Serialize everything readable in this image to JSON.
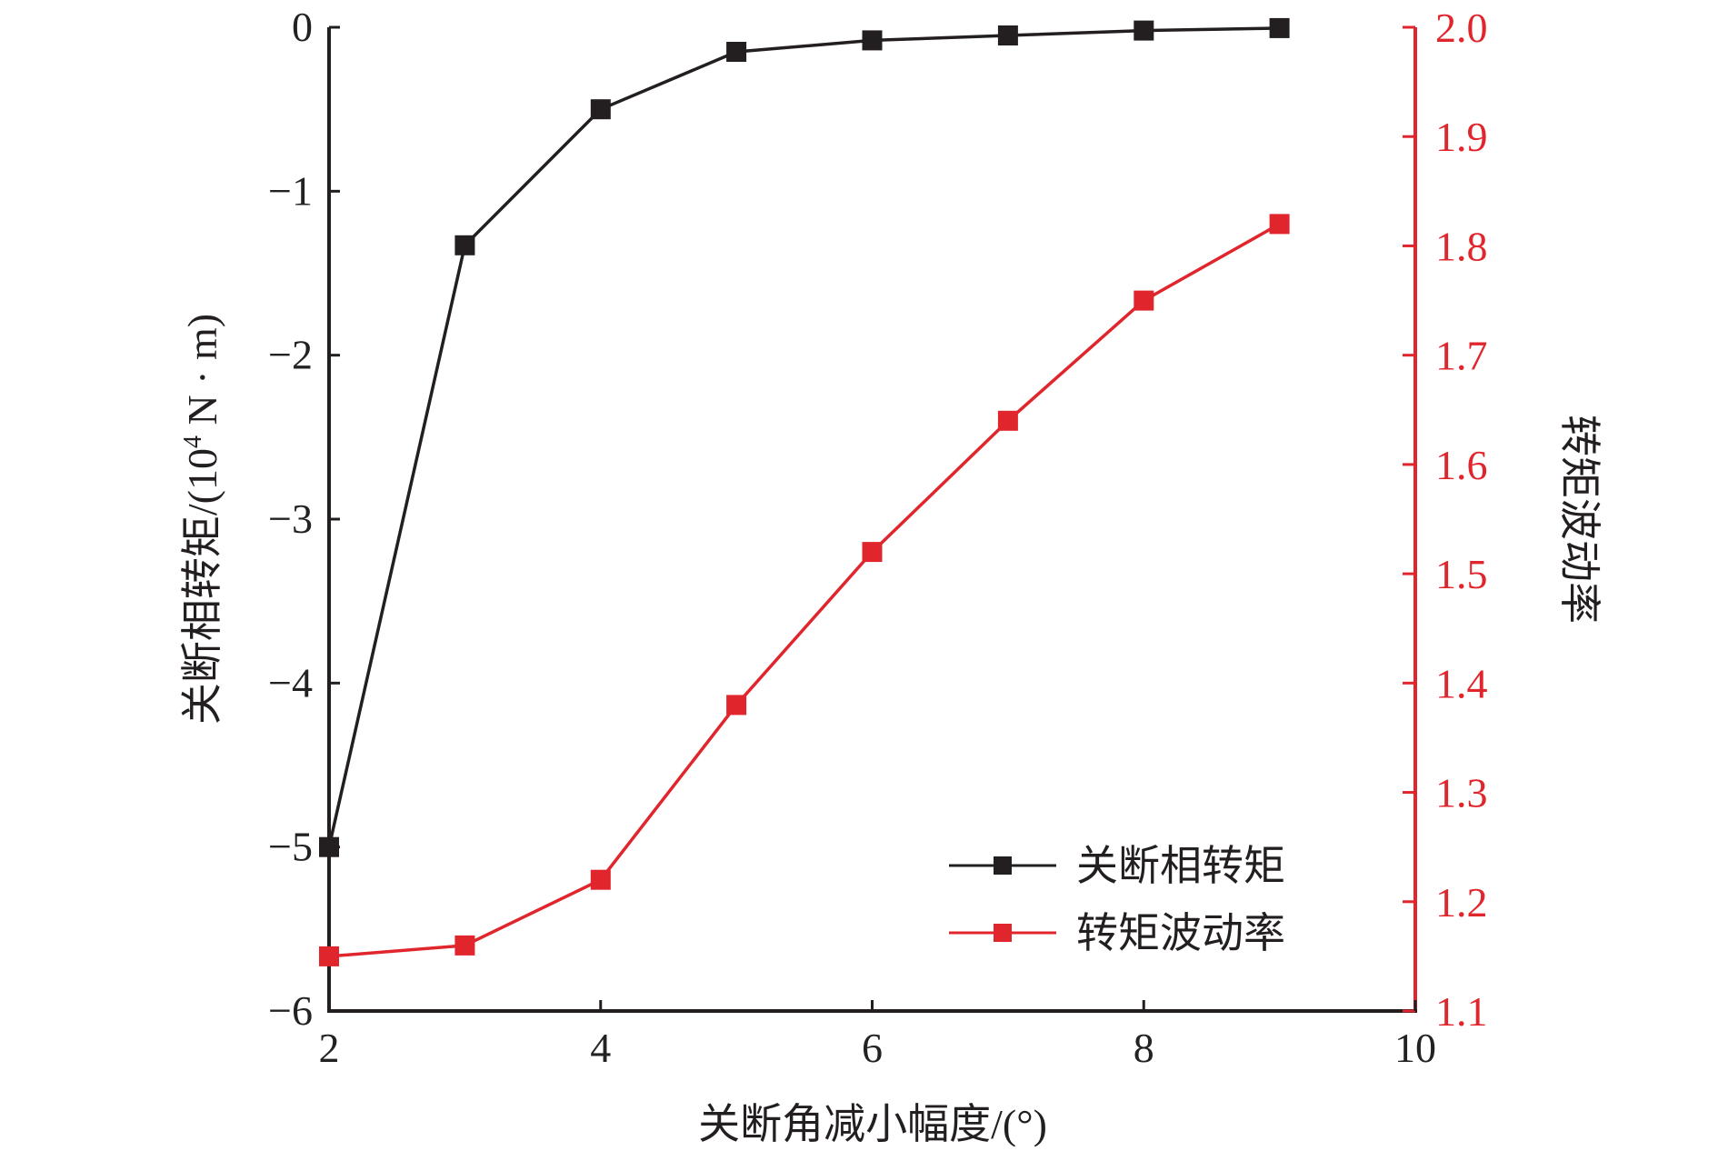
{
  "chart_data": {
    "type": "line",
    "xlabel": "关断角减小幅度/(°)",
    "ylabel_left": {
      "prefix": "关断相转矩/(10",
      "sup": "4",
      "suffix": " N · m)"
    },
    "ylabel_right": "转矩波动率",
    "x": [
      2,
      3,
      4,
      5,
      6,
      7,
      8,
      9
    ],
    "xlim": [
      2,
      10
    ],
    "xticks": [
      2,
      4,
      6,
      8,
      10
    ],
    "xtick_labels": [
      "2",
      "4",
      "6",
      "8",
      "10"
    ],
    "ylim_left": [
      -6,
      0
    ],
    "yticks_left": [
      0,
      -1,
      -2,
      -3,
      -4,
      -5,
      -6
    ],
    "ytick_labels_left": [
      "0",
      "−1",
      "−2",
      "−3",
      "−4",
      "−5",
      "−6"
    ],
    "ylim_right": [
      1.1,
      2.0
    ],
    "yticks_right": [
      2.0,
      1.9,
      1.8,
      1.7,
      1.6,
      1.5,
      1.4,
      1.3,
      1.2,
      1.1
    ],
    "ytick_labels_right": [
      "2.0",
      "1.9",
      "1.8",
      "1.7",
      "1.6",
      "1.5",
      "1.4",
      "1.3",
      "1.2",
      "1.1"
    ],
    "grid": false,
    "legend_position": "bottom-right",
    "series": [
      {
        "name": "关断相转矩",
        "axis": "left",
        "color": "#231f20",
        "marker": "square",
        "values": [
          -5.0,
          -1.33,
          -0.5,
          -0.15,
          -0.08,
          -0.05,
          -0.02,
          -0.005
        ]
      },
      {
        "name": "转矩波动率",
        "axis": "right",
        "color": "#e0262c",
        "marker": "square",
        "values": [
          1.15,
          1.16,
          1.22,
          1.38,
          1.52,
          1.64,
          1.75,
          1.82
        ]
      }
    ],
    "colors": {
      "left_axis": "#231f20",
      "right_axis": "#e0262c"
    }
  }
}
